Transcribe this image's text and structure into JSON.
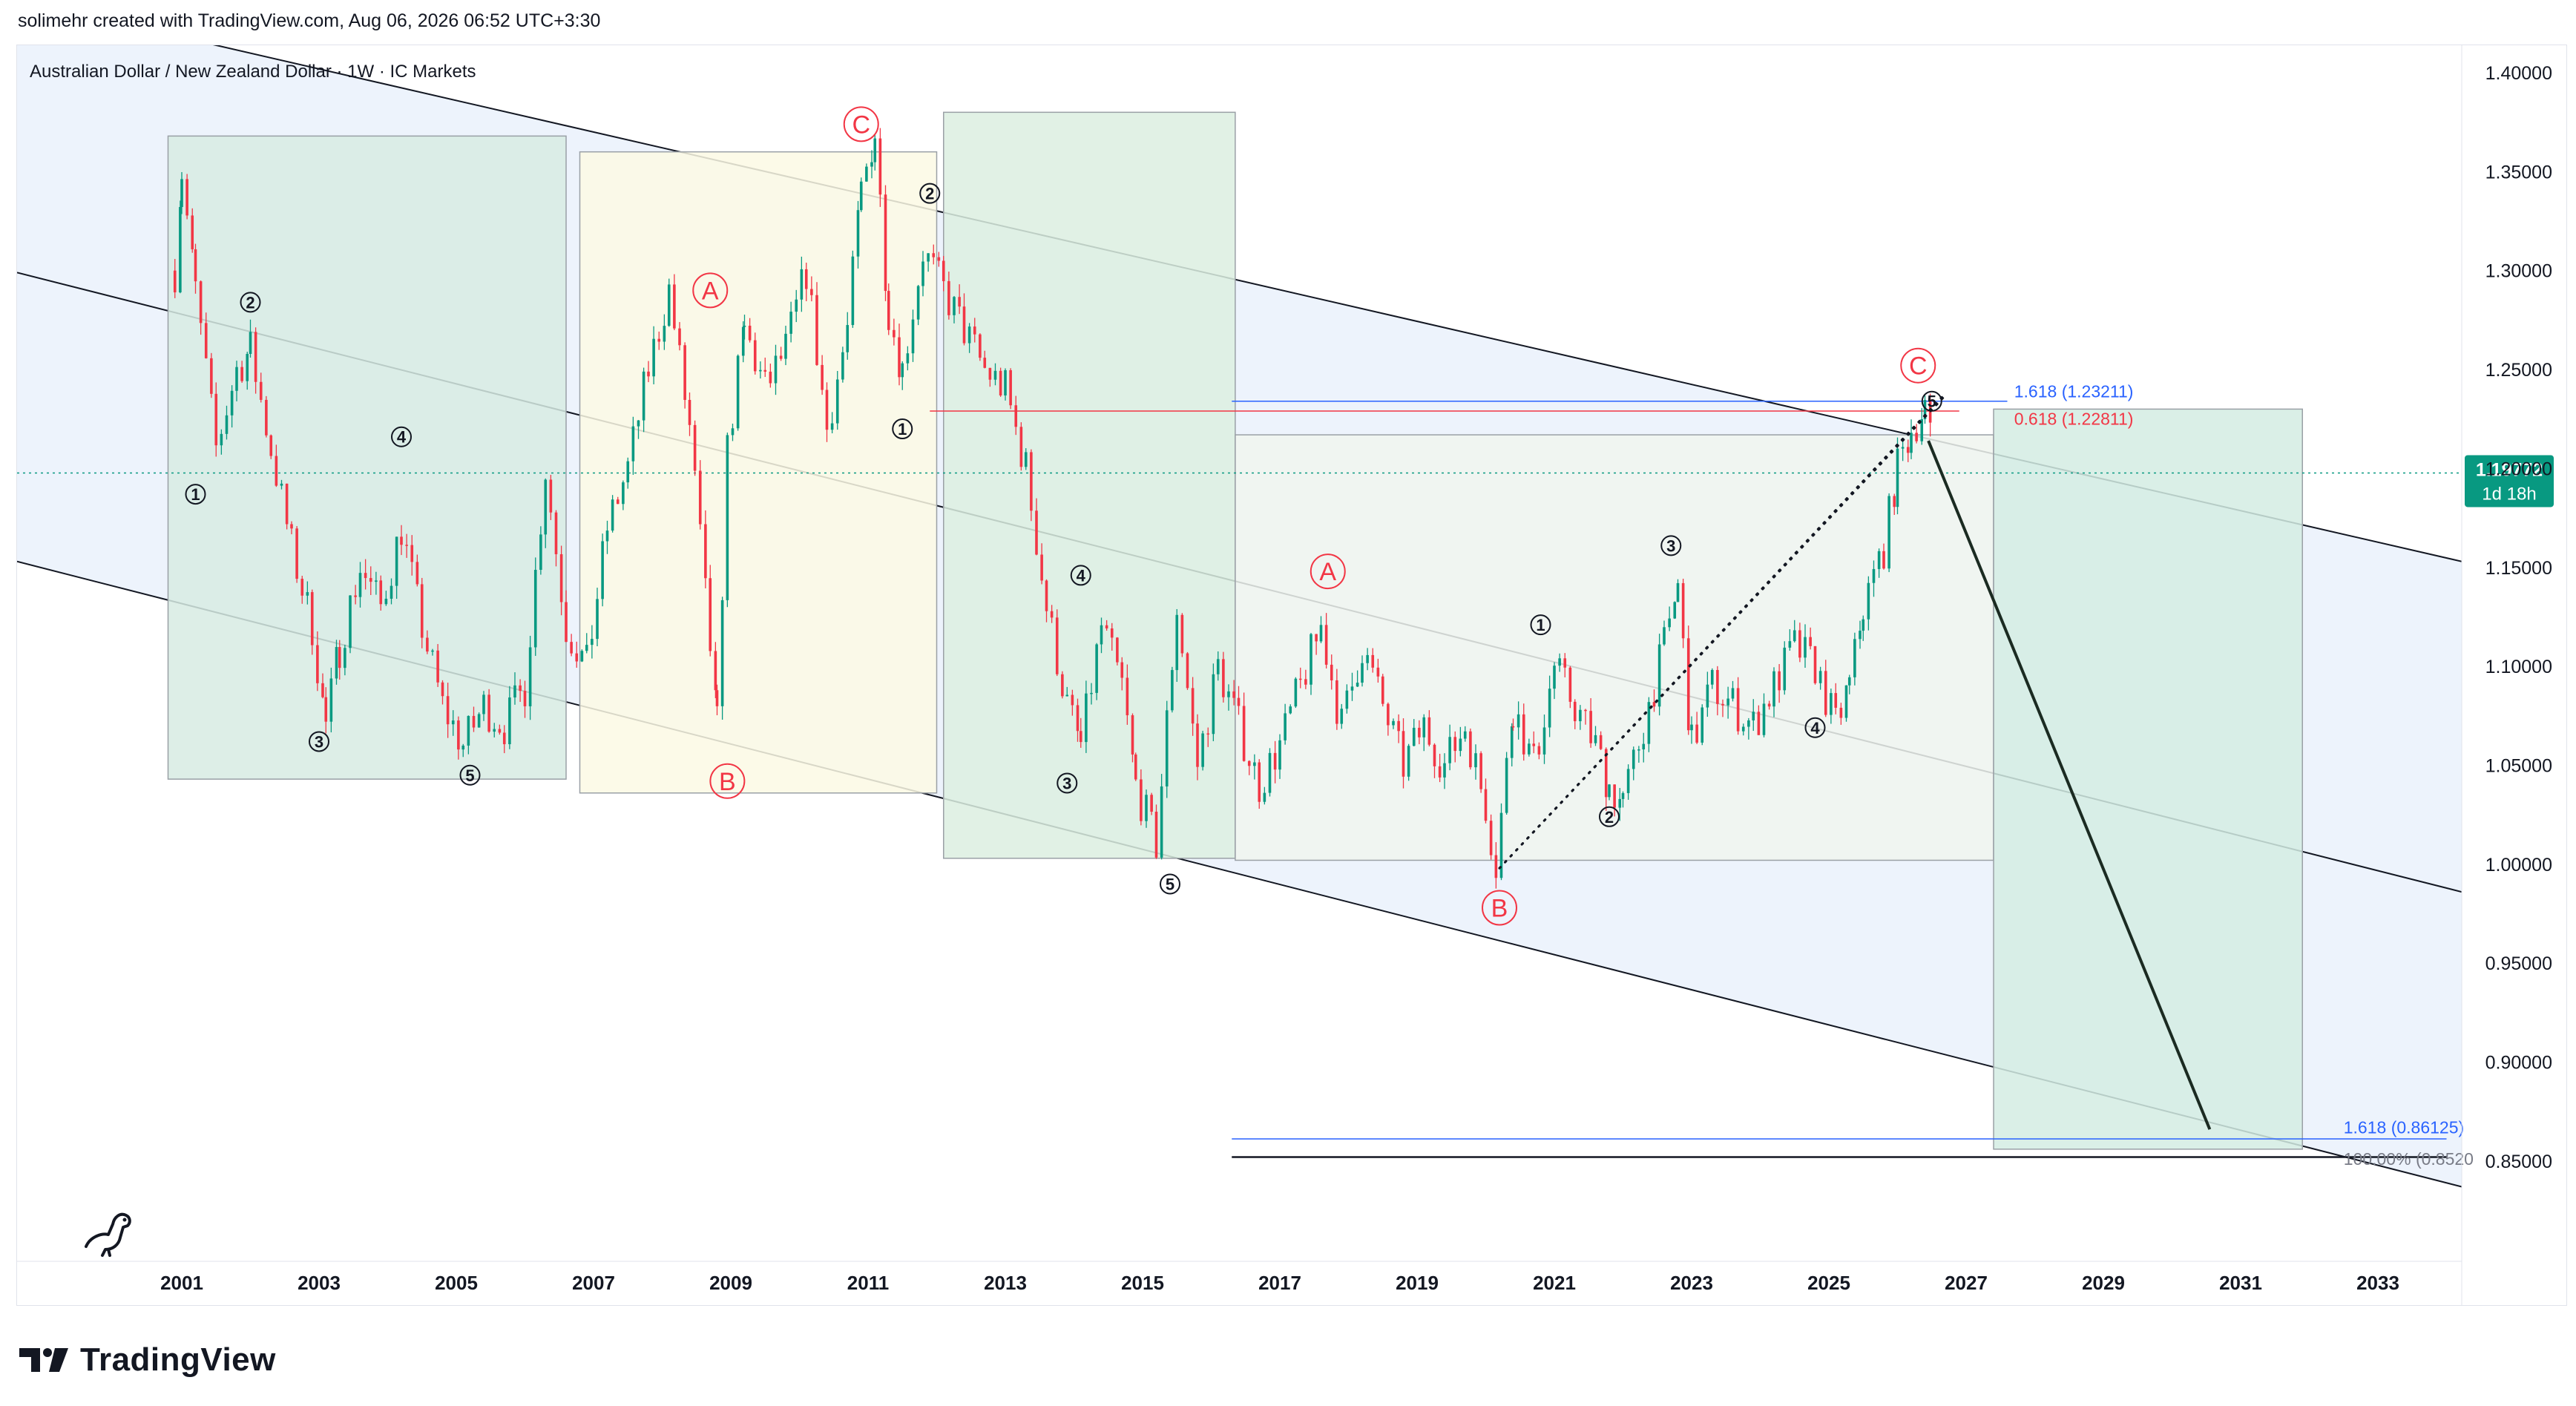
{
  "header": {
    "credit": "solimehr created with TradingView.com, Aug 06, 2026 06:52 UTC+3:30"
  },
  "chart_data": {
    "type": "line",
    "title": "Australian Dollar / New Zealand Dollar · 1W · IC Markets",
    "xlabel": "",
    "ylabel": "",
    "x_tick_labels": [
      "2001",
      "2003",
      "2005",
      "2007",
      "2009",
      "2011",
      "2013",
      "2015",
      "2017",
      "2019",
      "2021",
      "2023",
      "2025",
      "2027",
      "2029",
      "2031",
      "2033"
    ],
    "y_tick_labels": [
      "1.40000",
      "1.35000",
      "1.30000",
      "1.25000",
      "1.20000",
      "1.15000",
      "1.10000",
      "1.05000",
      "1.00000",
      "0.95000",
      "0.90000",
      "0.85000"
    ],
    "ylim": [
      0.82,
      1.415
    ],
    "xlim": [
      1998.8,
      2034.8
    ],
    "grid": false,
    "colors": {
      "candle_up": "#089981",
      "candle_down": "#f23645",
      "channel_fill": "#e8f0fb",
      "wave_red": "#f23645",
      "fib_blue": "#2962ff",
      "price_badge": "#089981",
      "price_line": "#089981"
    },
    "series": [
      {
        "name": "AUDNZD",
        "x": [
          2000.9,
          2001.0,
          2001.2,
          2001.5,
          2001.8,
          2002.0,
          2002.3,
          2002.6,
          2002.9,
          2003.1,
          2003.3,
          2003.6,
          2003.9,
          2004.2,
          2004.5,
          2004.8,
          2005.1,
          2005.4,
          2005.7,
          2006.0,
          2006.3,
          2006.6,
          2006.9,
          2007.2,
          2007.5,
          2007.8,
          2008.1,
          2008.4,
          2008.7,
          2008.8,
          2008.95,
          2009.2,
          2009.5,
          2009.8,
          2010.1,
          2010.4,
          2010.7,
          2010.9,
          2011.1,
          2011.3,
          2011.5,
          2011.8,
          2012.1,
          2012.4,
          2012.7,
          2013.0,
          2013.3,
          2013.6,
          2013.9,
          2014.1,
          2014.4,
          2014.7,
          2014.9,
          2015.2,
          2015.5,
          2015.8,
          2016.1,
          2016.4,
          2016.7,
          2017.0,
          2017.3,
          2017.6,
          2017.9,
          2018.2,
          2018.5,
          2018.8,
          2019.1,
          2019.4,
          2019.7,
          2020.0,
          2020.15,
          2020.4,
          2020.7,
          2021.0,
          2021.3,
          2021.6,
          2021.8,
          2022.0,
          2022.3,
          2022.6,
          2022.8,
          2023.0,
          2023.3,
          2023.6,
          2023.9,
          2024.2,
          2024.5,
          2024.8,
          2025.1,
          2025.3,
          2025.5,
          2025.8,
          2026.0,
          2026.2,
          2026.4,
          2026.55
        ],
        "values": [
          1.3,
          1.35,
          1.29,
          1.21,
          1.25,
          1.26,
          1.21,
          1.16,
          1.12,
          1.07,
          1.11,
          1.15,
          1.13,
          1.17,
          1.12,
          1.08,
          1.06,
          1.08,
          1.07,
          1.09,
          1.2,
          1.12,
          1.1,
          1.17,
          1.2,
          1.25,
          1.29,
          1.22,
          1.11,
          1.07,
          1.21,
          1.27,
          1.24,
          1.26,
          1.3,
          1.22,
          1.27,
          1.34,
          1.37,
          1.28,
          1.25,
          1.31,
          1.29,
          1.27,
          1.25,
          1.24,
          1.2,
          1.13,
          1.08,
          1.06,
          1.12,
          1.09,
          1.04,
          1.01,
          1.13,
          1.05,
          1.1,
          1.07,
          1.04,
          1.06,
          1.09,
          1.12,
          1.07,
          1.11,
          1.08,
          1.05,
          1.07,
          1.05,
          1.07,
          1.03,
          1.0,
          1.08,
          1.05,
          1.1,
          1.08,
          1.06,
          1.04,
          1.03,
          1.07,
          1.11,
          1.14,
          1.06,
          1.09,
          1.08,
          1.07,
          1.09,
          1.11,
          1.1,
          1.07,
          1.09,
          1.13,
          1.16,
          1.2,
          1.22,
          1.23,
          1.2
        ]
      }
    ],
    "last_price": "1.19772",
    "countdown": "1d 18h",
    "fib_levels": [
      {
        "label": "1.618 (1.23211)",
        "value": 1.23211,
        "color": "#2962ff"
      },
      {
        "label": "0.618 (1.22811)",
        "value": 1.22811,
        "color": "#f23645"
      },
      {
        "label": "1.618 (0.86125)",
        "value": 0.86125,
        "color": "#2962ff"
      },
      {
        "label": "100.00% (0.8520",
        "value": 0.852,
        "color": "#787b86"
      }
    ],
    "wave_labels_black": [
      {
        "t": "1",
        "x": 2001.2,
        "y": 1.187
      },
      {
        "t": "2",
        "x": 2002.0,
        "y": 1.284
      },
      {
        "t": "3",
        "x": 2003.0,
        "y": 1.062
      },
      {
        "t": "4",
        "x": 2004.2,
        "y": 1.216
      },
      {
        "t": "5",
        "x": 2005.2,
        "y": 1.045
      },
      {
        "t": "2",
        "x": 2011.9,
        "y": 1.339
      },
      {
        "t": "1",
        "x": 2011.5,
        "y": 1.22
      },
      {
        "t": "4",
        "x": 2014.1,
        "y": 1.146
      },
      {
        "t": "3",
        "x": 2013.9,
        "y": 1.041
      },
      {
        "t": "5",
        "x": 2015.4,
        "y": 0.99
      },
      {
        "t": "1",
        "x": 2020.8,
        "y": 1.121
      },
      {
        "t": "2",
        "x": 2021.8,
        "y": 1.024
      },
      {
        "t": "3",
        "x": 2022.7,
        "y": 1.161
      },
      {
        "t": "4",
        "x": 2024.8,
        "y": 1.069
      },
      {
        "t": "5",
        "x": 2026.5,
        "y": 1.234
      }
    ],
    "wave_labels_red": [
      {
        "t": "A",
        "x": 2008.7,
        "y": 1.29
      },
      {
        "t": "B",
        "x": 2008.95,
        "y": 1.042
      },
      {
        "t": "C",
        "x": 2010.9,
        "y": 1.374
      },
      {
        "t": "A",
        "x": 2017.7,
        "y": 1.148
      },
      {
        "t": "B",
        "x": 2020.2,
        "y": 0.978
      },
      {
        "t": "C",
        "x": 2026.3,
        "y": 1.252
      }
    ]
  }
}
